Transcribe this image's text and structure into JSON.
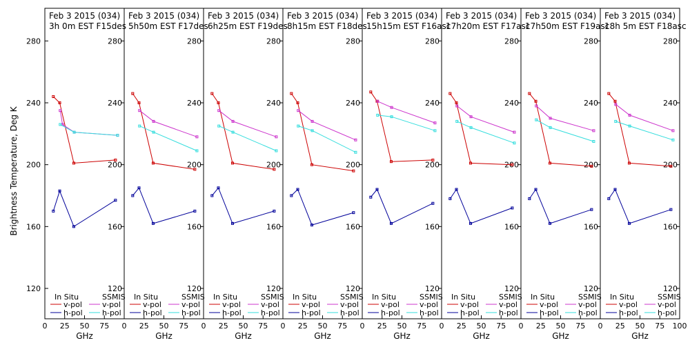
{
  "figure": {
    "ylabel": "Brightness Temperature, Deg K",
    "xlabel": "GHz",
    "legend": {
      "insitu_header": "In Situ",
      "ssmis_header": "SSMIS",
      "vpol": "v-pol",
      "hpol": "h-pol"
    },
    "colors": {
      "insitu_v": "#cc0000",
      "insitu_h": "#000099",
      "ssmis_v": "#cc33cc",
      "ssmis_h": "#33dddd"
    },
    "yticks": [
      "120",
      "160",
      "200",
      "240",
      "280"
    ],
    "xticks": [
      "0",
      "25",
      "50",
      "75",
      "100"
    ]
  },
  "chart_data": [
    {
      "type": "line",
      "title": "Feb 3 2015 (034)",
      "subtitle": "3h 0m  EST F15des",
      "xlim": [
        0,
        100
      ],
      "ylim": [
        110,
        290
      ],
      "series": [
        {
          "name": "In Situ v-pol",
          "x": [
            10.7,
            18.7,
            36.5,
            89.0
          ],
          "y": [
            244,
            240,
            201,
            203
          ]
        },
        {
          "name": "In Situ h-pol",
          "x": [
            10.7,
            18.7,
            36.5,
            89.0
          ],
          "y": [
            170,
            183,
            160,
            177
          ]
        },
        {
          "name": "SSMIS v-pol",
          "x": [
            19.35,
            22.235,
            37.0,
            91.655
          ],
          "y": [
            235,
            226,
            221,
            219
          ]
        },
        {
          "name": "SSMIS h-pol",
          "x": [
            19.35,
            37.0,
            91.655
          ],
          "y": [
            226,
            221,
            219
          ]
        }
      ]
    },
    {
      "type": "line",
      "title": "Feb 3 2015 (034)",
      "subtitle": "5h50m  EST F17des",
      "xlim": [
        0,
        100
      ],
      "ylim": [
        110,
        290
      ],
      "series": [
        {
          "name": "In Situ v-pol",
          "x": [
            10.7,
            18.7,
            36.5,
            89.0
          ],
          "y": [
            246,
            240,
            201,
            197
          ]
        },
        {
          "name": "In Situ h-pol",
          "x": [
            10.7,
            18.7,
            36.5,
            89.0
          ],
          "y": [
            180,
            185,
            162,
            170
          ]
        },
        {
          "name": "SSMIS v-pol",
          "x": [
            19.35,
            37.0,
            91.655
          ],
          "y": [
            235,
            228,
            218
          ]
        },
        {
          "name": "SSMIS h-pol",
          "x": [
            19.35,
            37.0,
            91.655
          ],
          "y": [
            225,
            221,
            209
          ]
        }
      ]
    },
    {
      "type": "line",
      "title": "Feb 3 2015 (034)",
      "subtitle": "6h25m  EST F19des",
      "xlim": [
        0,
        100
      ],
      "ylim": [
        110,
        290
      ],
      "series": [
        {
          "name": "In Situ v-pol",
          "x": [
            10.7,
            18.7,
            36.5,
            89.0
          ],
          "y": [
            246,
            240,
            201,
            197
          ]
        },
        {
          "name": "In Situ h-pol",
          "x": [
            10.7,
            18.7,
            36.5,
            89.0
          ],
          "y": [
            180,
            185,
            162,
            170
          ]
        },
        {
          "name": "SSMIS v-pol",
          "x": [
            19.35,
            37.0,
            91.655
          ],
          "y": [
            235,
            228,
            218
          ]
        },
        {
          "name": "SSMIS h-pol",
          "x": [
            19.35,
            37.0,
            91.655
          ],
          "y": [
            225,
            221,
            209
          ]
        }
      ]
    },
    {
      "type": "line",
      "title": "Feb 3 2015 (034)",
      "subtitle": "8h15m  EST F18des",
      "xlim": [
        0,
        100
      ],
      "ylim": [
        110,
        290
      ],
      "series": [
        {
          "name": "In Situ v-pol",
          "x": [
            10.7,
            18.7,
            36.5,
            89.0
          ],
          "y": [
            246,
            240,
            200,
            196
          ]
        },
        {
          "name": "In Situ h-pol",
          "x": [
            10.7,
            18.7,
            36.5,
            89.0
          ],
          "y": [
            180,
            184,
            161,
            169
          ]
        },
        {
          "name": "SSMIS v-pol",
          "x": [
            19.35,
            37.0,
            91.655
          ],
          "y": [
            235,
            228,
            216
          ]
        },
        {
          "name": "SSMIS h-pol",
          "x": [
            19.35,
            37.0,
            91.655
          ],
          "y": [
            225,
            222,
            208
          ]
        }
      ]
    },
    {
      "type": "line",
      "title": "Feb 3 2015 (034)",
      "subtitle": "15h15m  EST F16asc",
      "xlim": [
        0,
        100
      ],
      "ylim": [
        110,
        290
      ],
      "series": [
        {
          "name": "In Situ v-pol",
          "x": [
            10.7,
            18.7,
            36.5,
            89.0
          ],
          "y": [
            247,
            241,
            202,
            203
          ]
        },
        {
          "name": "In Situ h-pol",
          "x": [
            10.7,
            18.7,
            36.5,
            89.0
          ],
          "y": [
            179,
            184,
            162,
            175
          ]
        },
        {
          "name": "SSMIS v-pol",
          "x": [
            19.35,
            37.0,
            91.655
          ],
          "y": [
            241,
            237,
            227
          ]
        },
        {
          "name": "SSMIS h-pol",
          "x": [
            19.35,
            37.0,
            91.655
          ],
          "y": [
            232,
            231,
            222
          ]
        }
      ]
    },
    {
      "type": "line",
      "title": "Feb 3 2015 (034)",
      "subtitle": "17h20m  EST F17asc",
      "xlim": [
        0,
        100
      ],
      "ylim": [
        110,
        290
      ],
      "series": [
        {
          "name": "In Situ v-pol",
          "x": [
            10.7,
            18.7,
            36.5,
            89.0
          ],
          "y": [
            246,
            240,
            201,
            200
          ]
        },
        {
          "name": "In Situ h-pol",
          "x": [
            10.7,
            18.7,
            36.5,
            89.0
          ],
          "y": [
            178,
            184,
            162,
            172
          ]
        },
        {
          "name": "SSMIS v-pol",
          "x": [
            19.35,
            37.0,
            91.655
          ],
          "y": [
            238,
            231,
            221
          ]
        },
        {
          "name": "SSMIS h-pol",
          "x": [
            19.35,
            37.0,
            91.655
          ],
          "y": [
            228,
            224,
            214
          ]
        }
      ]
    },
    {
      "type": "line",
      "title": "Feb 3 2015 (034)",
      "subtitle": "17h50m  EST F19asc",
      "xlim": [
        0,
        100
      ],
      "ylim": [
        110,
        290
      ],
      "series": [
        {
          "name": "In Situ v-pol",
          "x": [
            10.7,
            18.7,
            36.5,
            89.0
          ],
          "y": [
            246,
            241,
            201,
            199
          ]
        },
        {
          "name": "In Situ h-pol",
          "x": [
            10.7,
            18.7,
            36.5,
            89.0
          ],
          "y": [
            178,
            184,
            162,
            171
          ]
        },
        {
          "name": "SSMIS v-pol",
          "x": [
            19.35,
            37.0,
            91.655
          ],
          "y": [
            238,
            230,
            222
          ]
        },
        {
          "name": "SSMIS h-pol",
          "x": [
            19.35,
            37.0,
            91.655
          ],
          "y": [
            229,
            224,
            215
          ]
        }
      ]
    },
    {
      "type": "line",
      "title": "Feb 3 2015 (034)",
      "subtitle": "18h 5m  EST F18asc",
      "xlim": [
        0,
        100
      ],
      "ylim": [
        110,
        290
      ],
      "series": [
        {
          "name": "In Situ v-pol",
          "x": [
            10.7,
            18.7,
            36.5,
            89.0
          ],
          "y": [
            246,
            241,
            201,
            199
          ]
        },
        {
          "name": "In Situ h-pol",
          "x": [
            10.7,
            18.7,
            36.5,
            89.0
          ],
          "y": [
            178,
            184,
            162,
            171
          ]
        },
        {
          "name": "SSMIS v-pol",
          "x": [
            19.35,
            37.0,
            91.655
          ],
          "y": [
            239,
            232,
            222
          ]
        },
        {
          "name": "SSMIS h-pol",
          "x": [
            19.35,
            37.0,
            91.655
          ],
          "y": [
            228,
            225,
            216
          ]
        }
      ]
    }
  ]
}
